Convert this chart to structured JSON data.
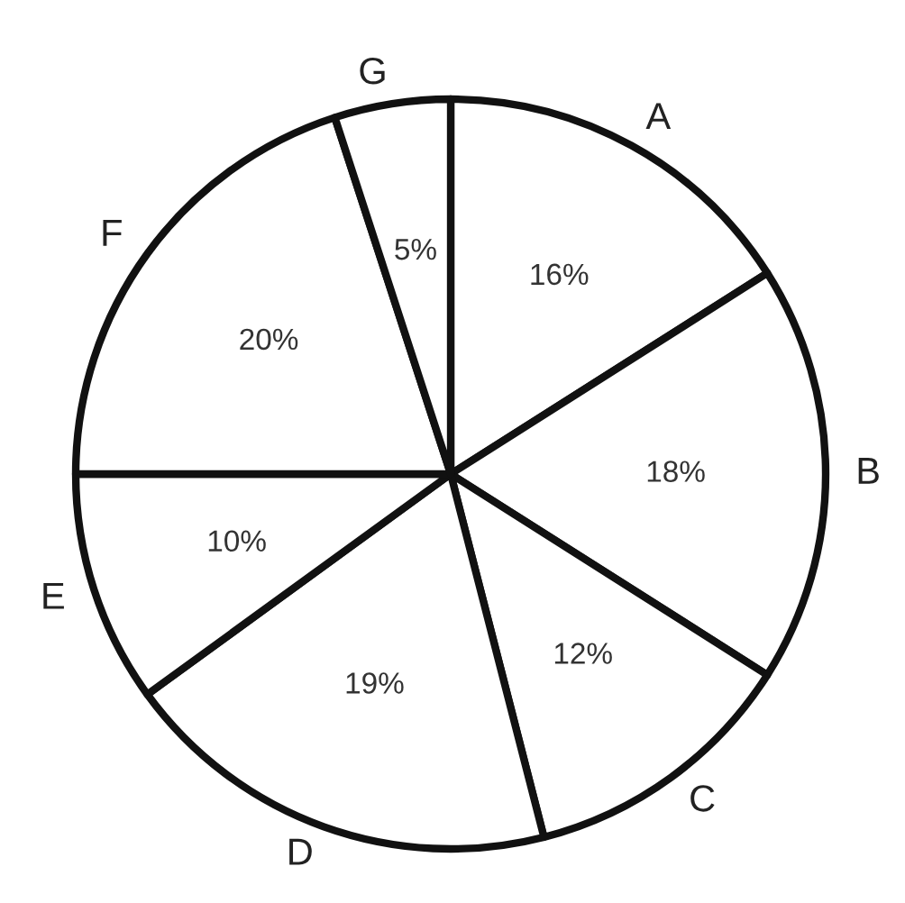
{
  "chart_data": {
    "type": "pie",
    "categories": [
      "A",
      "B",
      "C",
      "D",
      "E",
      "F",
      "G"
    ],
    "values": [
      16,
      18,
      12,
      19,
      10,
      20,
      5
    ],
    "value_labels": [
      "16%",
      "18%",
      "12%",
      "19%",
      "10%",
      "20%",
      "5%"
    ],
    "colors": [
      "#ffffff",
      "#ffffff",
      "#ffffff",
      "#ffffff",
      "#ffffff",
      "#ffffff",
      "#ffffff"
    ]
  }
}
